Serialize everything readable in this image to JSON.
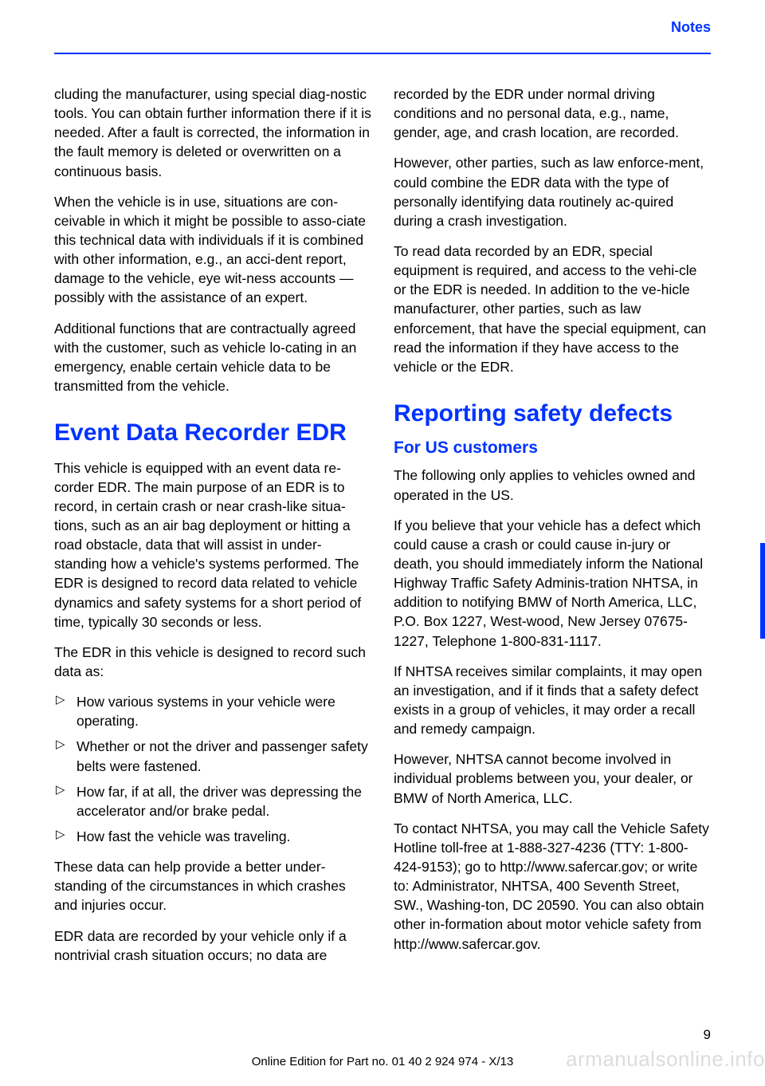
{
  "header": {
    "label": "Notes"
  },
  "left": {
    "p1": "cluding the manufacturer, using special diag‐nostic tools. You can obtain further information there if it is needed. After a fault is corrected, the information in the fault memory is deleted or overwritten on a continuous basis.",
    "p2": "When the vehicle is in use, situations are con‐ceivable in which it might be possible to asso‐ciate this technical data with individuals if it is combined with other information, e.g., an acci‐dent report, damage to the vehicle, eye wit‐ness accounts — possibly with the assistance of an expert.",
    "p3": "Additional functions that are contractually agreed with the customer, such as vehicle lo‐cating in an emergency, enable certain vehicle data to be transmitted from the vehicle.",
    "h1": "Event Data Recorder EDR",
    "p4": "This vehicle is equipped with an event data re‐corder EDR. The main purpose of an EDR is to record, in certain crash or near crash-like situa‐tions, such as an air bag deployment or hitting a road obstacle, data that will assist in under‐standing how a vehicle's systems performed. The EDR is designed to record data related to vehicle dynamics and safety systems for a short period of time, typically 30 seconds or less.",
    "p5": "The EDR in this vehicle is designed to record such data as:",
    "bullets": [
      "How various systems in your vehicle were operating.",
      "Whether or not the driver and passenger safety belts were fastened.",
      "How far, if at all, the driver was depressing the accelerator and/or brake pedal.",
      "How fast the vehicle was traveling."
    ],
    "p6": "These data can help provide a better under‐standing of the circumstances in which crashes and injuries occur.",
    "p7": "EDR data are recorded by your vehicle only if a nontrivial crash situation occurs; no data are"
  },
  "right": {
    "p1": "recorded by the EDR under normal driving conditions and no personal data, e.g., name, gender, age, and crash location, are recorded.",
    "p2": "However, other parties, such as law enforce‐ment, could combine the EDR data with the type of personally identifying data routinely ac‐quired during a crash investigation.",
    "p3": "To read data recorded by an EDR, special equipment is required, and access to the vehi‐cle or the EDR is needed. In addition to the ve‐hicle manufacturer, other parties, such as law enforcement, that have the special equipment, can read the information if they have access to the vehicle or the EDR.",
    "h1": "Reporting safety defects",
    "h2": "For US customers",
    "p4": "The following only applies to vehicles owned and operated in the US.",
    "p5": "If you believe that your vehicle has a defect which could cause a crash or could cause in‐jury or death, you should immediately inform the National Highway Traffic Safety Adminis‐tration NHTSA, in addition to notifying BMW of North America, LLC, P.O. Box 1227, West‐wood, New Jersey 07675-1227, Telephone 1-800-831-1117.",
    "p6": "If NHTSA receives similar complaints, it may open an investigation, and if it finds that a safety defect exists in a group of vehicles, it may order a recall and remedy campaign.",
    "p7": "However, NHTSA cannot become involved in individual problems between you, your dealer, or BMW of North America, LLC.",
    "p8": "To contact NHTSA, you may call the Vehicle Safety Hotline toll-free at 1-888-327-4236 (TTY: 1-800-424-9153); go to http://www.safercar.gov; or write to: Administrator, NHTSA, 400 Seventh Street, SW., Washing‐ton, DC 20590. You can also obtain other in‐formation about motor vehicle safety from http://www.safercar.gov."
  },
  "footer": {
    "page_number": "9",
    "line": "Online Edition for Part no. 01 40 2 924 974 - X/13",
    "watermark": "armanualsonline.info"
  }
}
